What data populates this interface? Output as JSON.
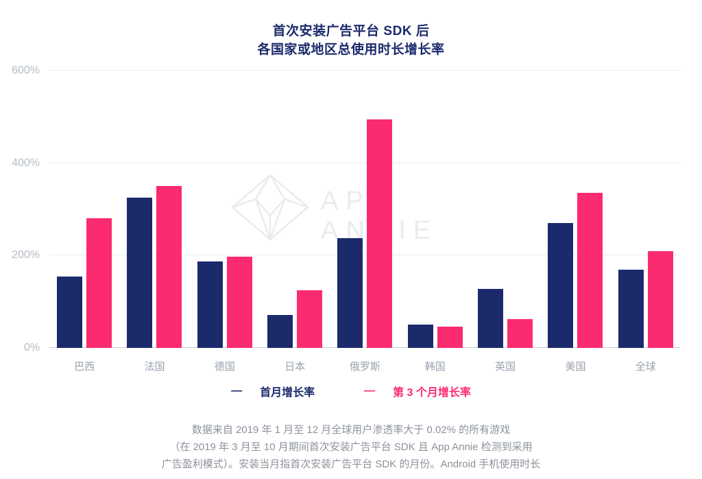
{
  "watermark": {
    "text": "APP ANNIE"
  },
  "legend": {
    "marker": "—"
  },
  "footnote": {
    "line1": "数据来自 2019 年 1 月至 12 月全球用户渗透率大于 0.02% 的所有游戏",
    "line2": "（在 2019 年 3 月至 10 月期间首次安装广告平台 SDK 且 App Annie 检测到采用",
    "line3": "广告盈利模式）。安装当月指首次安装广告平台 SDK 的月份。Android 手机使用时长"
  },
  "colors": {
    "navy": "#1b2a6b",
    "pink": "#fb2b6f",
    "title": "#1b2a6b",
    "watermark": "#e9ecef"
  },
  "chart_data": {
    "type": "bar",
    "title": "首次安装广告平台 SDK 后 各国家或地区总使用时长增长率",
    "title_lines": [
      "首次安装广告平台 SDK 后",
      "各国家或地区总使用时长增长率"
    ],
    "categories": [
      "巴西",
      "法国",
      "德国",
      "日本",
      "俄罗斯",
      "韩国",
      "英国",
      "美国",
      "全球"
    ],
    "series": [
      {
        "name": "首月增长率",
        "color": "#1b2a6b",
        "values": [
          155,
          325,
          187,
          72,
          238,
          50,
          128,
          270,
          170
        ]
      },
      {
        "name": "第 3 个月增长率",
        "color": "#fb2b6f",
        "values": [
          280,
          350,
          198,
          125,
          495,
          46,
          63,
          335,
          210
        ]
      }
    ],
    "xlabel": "",
    "ylabel": "",
    "ylim": [
      0,
      600
    ],
    "yticks": [
      "0%",
      "200%",
      "400%",
      "600%"
    ],
    "ytick_values": [
      0,
      200,
      400,
      600
    ],
    "grid": "horizontal",
    "legend_position": "bottom",
    "unit": "%"
  }
}
